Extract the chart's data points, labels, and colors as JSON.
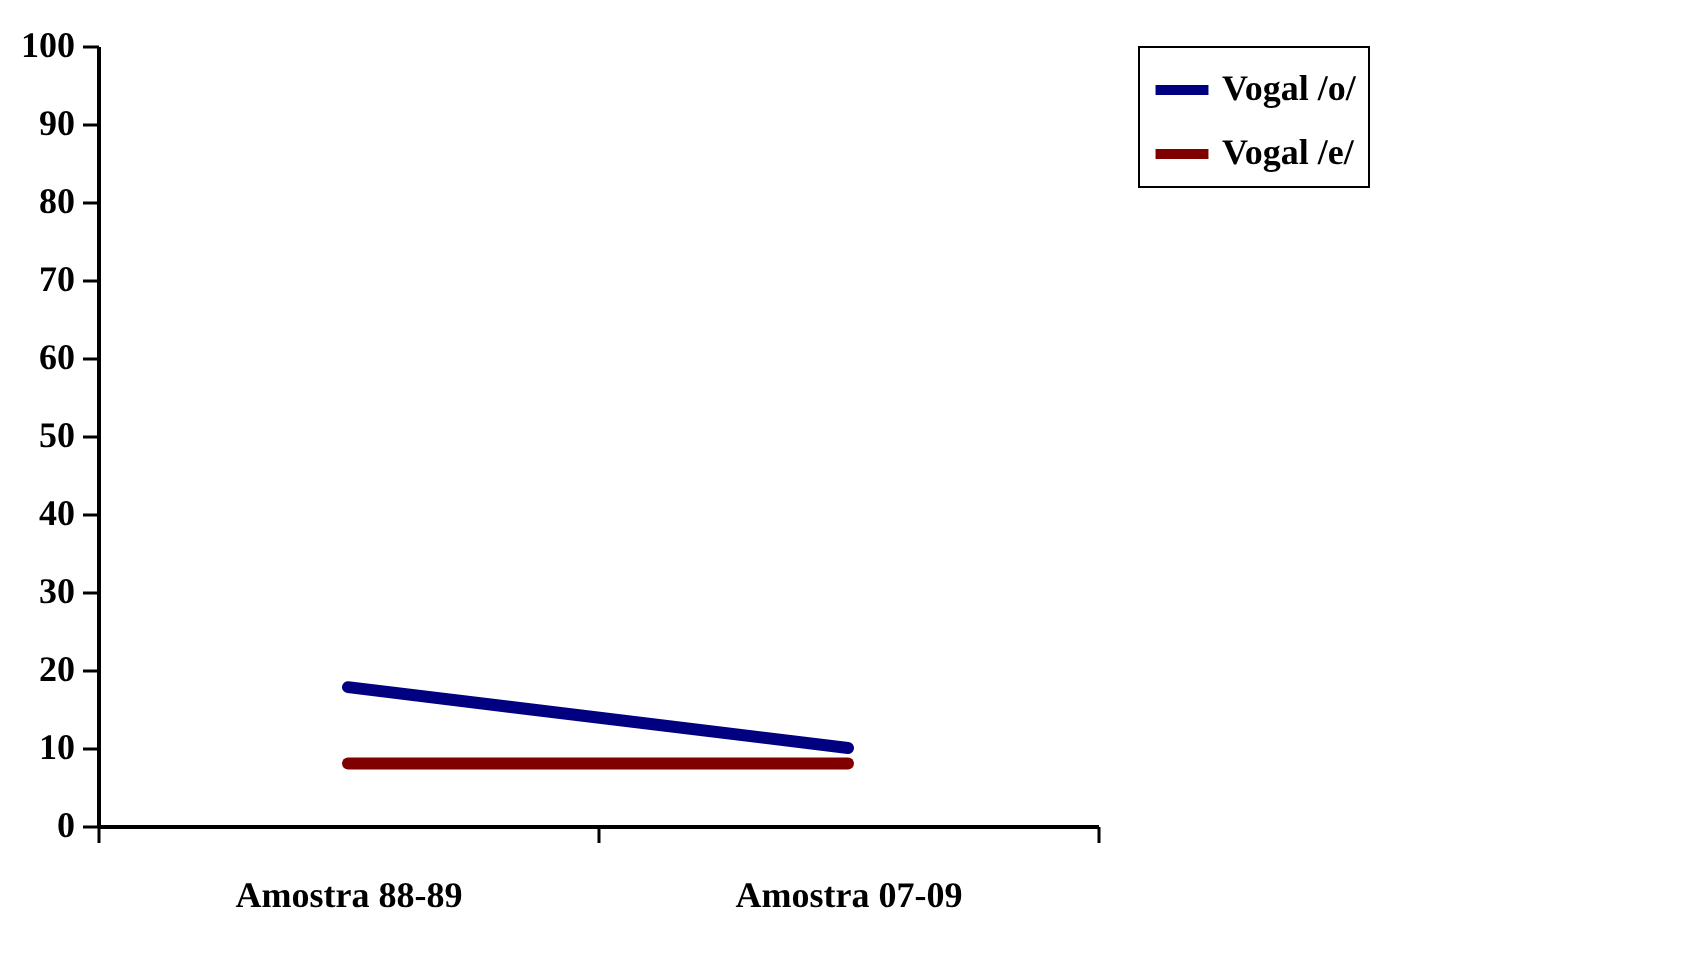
{
  "chart_data": {
    "type": "line",
    "categories": [
      "Amostra 88-89",
      "Amostra 07-09"
    ],
    "series": [
      {
        "name": "Vogal /o/",
        "color": "#000080",
        "values": [
          17.8,
          10
        ]
      },
      {
        "name": "Vogal /e/",
        "color": "#800000",
        "values": [
          8,
          8
        ]
      }
    ],
    "ylim": [
      0,
      100
    ],
    "yticks": [
      0,
      10,
      20,
      30,
      40,
      50,
      60,
      70,
      80,
      90,
      100
    ],
    "grid": false,
    "legend": "right",
    "marker": "none",
    "line_style": "solid"
  }
}
